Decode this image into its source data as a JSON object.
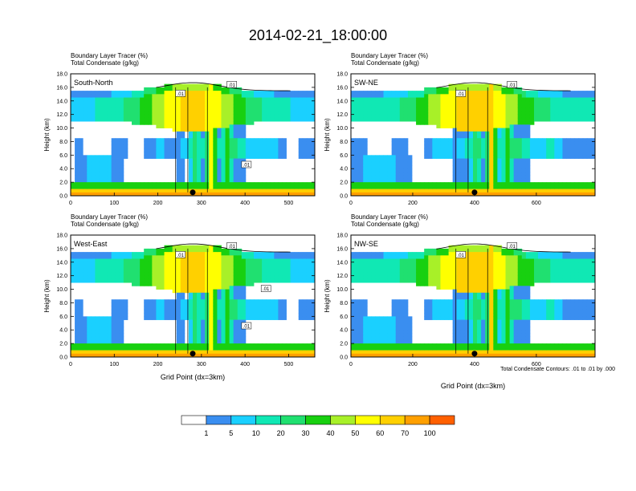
{
  "page_title": "2014-02-21_18:00:00",
  "colorbar": {
    "labels": [
      "1",
      "5",
      "10",
      "20",
      "30",
      "40",
      "50",
      "60",
      "70",
      "100"
    ],
    "colors": [
      "#ffffff",
      "#3a8ef0",
      "#1ad0ff",
      "#10e8b4",
      "#20e070",
      "#18d010",
      "#a8f028",
      "#ffff00",
      "#ffd000",
      "#ffa000",
      "#ff6000",
      "#ff1e1e"
    ]
  },
  "footnote": "Total Condensate Contours: .01 to .01 by .000",
  "chart_data": [
    {
      "type": "heatmap",
      "panel": "South-North",
      "header_line1": "Boundary Layer Tracer    (%)",
      "header_line2": "Total Condensate   (g/kg)",
      "ylabel": "Height (km)",
      "xlabel": "",
      "ylim": [
        0,
        18
      ],
      "yticks": [
        "0.0",
        "2.0",
        "4.0",
        "6.0",
        "8.0",
        "10.0",
        "12.0",
        "14.0",
        "16.0",
        "18.0"
      ],
      "xlim": [
        0,
        560
      ],
      "xticks": [
        "0",
        "100",
        "200",
        "300",
        "400",
        "500"
      ],
      "contour_labels": [
        ".01",
        ".01",
        ".01"
      ],
      "marker_x": 280
    },
    {
      "type": "heatmap",
      "panel": "SW-NE",
      "header_line1": "Boundary Layer Tracer    (%)",
      "header_line2": "Total Condensate   (g/kg)",
      "ylabel": "Height (km)",
      "xlabel": "",
      "ylim": [
        0,
        18
      ],
      "yticks": [
        "0.0",
        "2.0",
        "4.0",
        "6.0",
        "8.0",
        "10.0",
        "12.0",
        "14.0",
        "16.0",
        "18.0"
      ],
      "xlim": [
        0,
        790
      ],
      "xticks": [
        "0",
        "200",
        "400",
        "600"
      ],
      "contour_labels": [
        ".01",
        ".01"
      ],
      "marker_x": 400
    },
    {
      "type": "heatmap",
      "panel": "West-East",
      "header_line1": "Boundary Layer Tracer    (%)",
      "header_line2": "Total Condensate   (g/kg)",
      "ylabel": "Height (km)",
      "xlabel": "Grid Point (dx=3km)",
      "ylim": [
        0,
        18
      ],
      "yticks": [
        "0.0",
        "2.0",
        "4.0",
        "6.0",
        "8.0",
        "10.0",
        "12.0",
        "14.0",
        "16.0",
        "18.0"
      ],
      "xlim": [
        0,
        560
      ],
      "xticks": [
        "0",
        "100",
        "200",
        "300",
        "400",
        "500"
      ],
      "contour_labels": [
        ".01",
        ".01",
        ".01",
        ".01"
      ],
      "marker_x": 280
    },
    {
      "type": "heatmap",
      "panel": "NW-SE",
      "header_line1": "Boundary Layer Tracer    (%)",
      "header_line2": "Total Condensate   (g/kg)",
      "ylabel": "Height (km)",
      "xlabel": "Grid Point (dx=3km)",
      "ylim": [
        0,
        18
      ],
      "yticks": [
        "0.0",
        "2.0",
        "4.0",
        "6.0",
        "8.0",
        "10.0",
        "12.0",
        "14.0",
        "16.0",
        "18.0"
      ],
      "xlim": [
        0,
        790
      ],
      "xticks": [
        "0",
        "200",
        "400",
        "600"
      ],
      "contour_labels": [
        ".01",
        ".01"
      ],
      "marker_x": 400
    }
  ]
}
